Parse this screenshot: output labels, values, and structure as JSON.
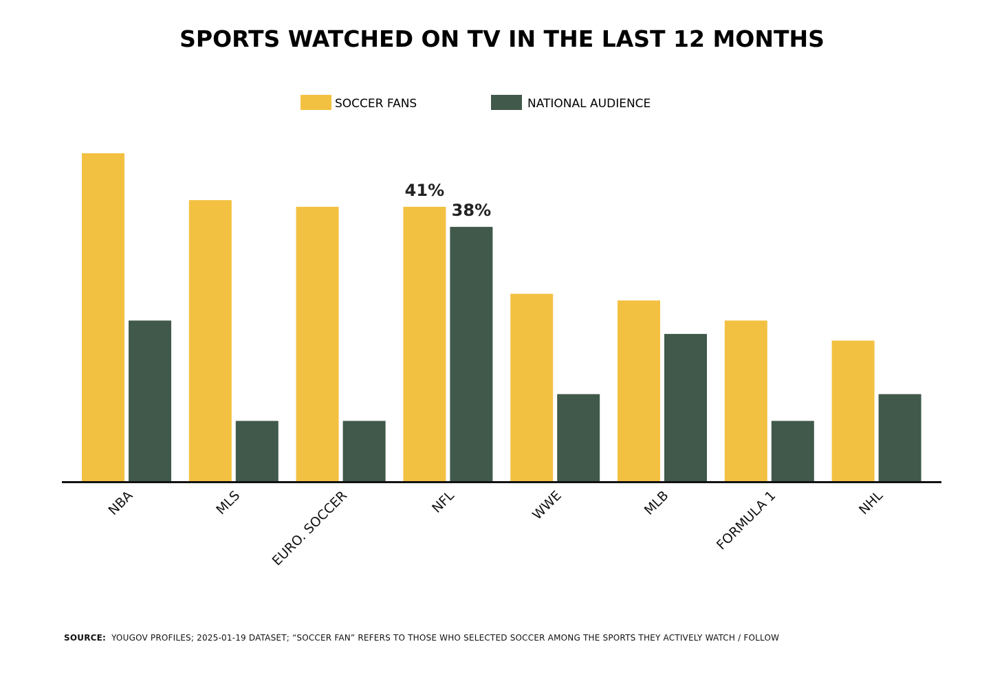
{
  "chart_data": {
    "type": "bar",
    "title": "SPORTS WATCHED ON TV IN THE LAST 12 MONTHS",
    "categories": [
      "NBA",
      "MLS",
      "EURO. SOCCER",
      "NFL",
      "WWE",
      "MLB",
      "FORMULA 1",
      "NHL"
    ],
    "series": [
      {
        "name": "SOCCER FANS",
        "color": "#F3C142",
        "values": [
          49,
          42,
          41,
          41,
          28,
          27,
          24,
          21
        ],
        "labels": [
          "",
          "",
          "",
          "41%",
          "",
          "",
          "",
          ""
        ]
      },
      {
        "name": "NATIONAL AUDIENCE",
        "color": "#40594A",
        "values": [
          24,
          9,
          9,
          38,
          13,
          22,
          9,
          13
        ],
        "labels": [
          "",
          "",
          "",
          "38%",
          "",
          "",
          "",
          ""
        ]
      }
    ],
    "ylim": [
      0,
      49
    ],
    "legend_position": "top-center",
    "grid": false
  },
  "footer": {
    "source_label": "SOURCE:",
    "source_text": "YOUGOV PROFILES; 2025-01-19 DATASET; “SOCCER FAN” REFERS TO THOSE WHO SELECTED SOCCER AMONG THE SPORTS THEY ACTIVELY WATCH / FOLLOW"
  }
}
